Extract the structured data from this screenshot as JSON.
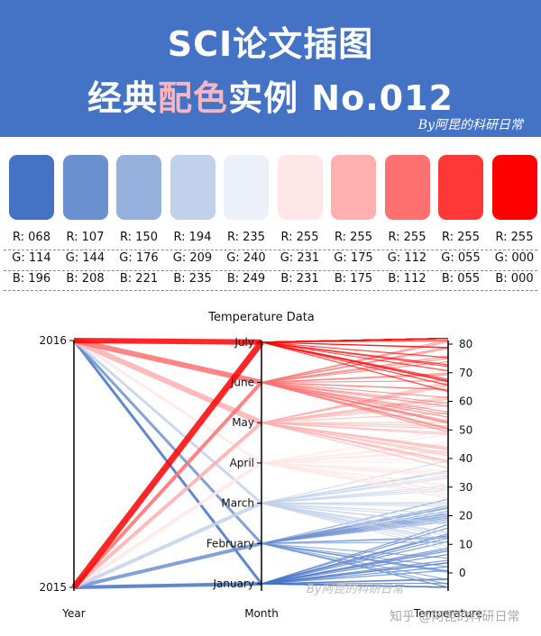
{
  "header": {
    "title_line1": "SCI论文插图",
    "title_line2_part1": "经典",
    "title_line2_highlight": "配色",
    "title_line2_part2": "实例 No.012",
    "byline": "By阿昆的科研日常"
  },
  "palette": [
    {
      "hex": "#4472c4",
      "r": "R: 068",
      "g": "G: 114",
      "b": "B: 196"
    },
    {
      "hex": "#6b90d0",
      "r": "R: 107",
      "g": "G: 144",
      "b": "B: 208"
    },
    {
      "hex": "#96b0dd",
      "r": "R: 150",
      "g": "G: 176",
      "b": "B: 221"
    },
    {
      "hex": "#c2d1eb",
      "r": "R: 194",
      "g": "G: 209",
      "b": "B: 235"
    },
    {
      "hex": "#ebf0f9",
      "r": "R: 235",
      "g": "G: 240",
      "b": "B: 249"
    },
    {
      "hex": "#ffe7e7",
      "r": "R: 255",
      "g": "G: 231",
      "b": "B: 231"
    },
    {
      "hex": "#ffafaf",
      "r": "R: 255",
      "g": "G: 175",
      "b": "B: 175"
    },
    {
      "hex": "#ff7070",
      "r": "R: 255",
      "g": "G: 112",
      "b": "B: 112"
    },
    {
      "hex": "#ff3737",
      "r": "R: 255",
      "g": "G: 055",
      "b": "B: 055"
    },
    {
      "hex": "#ff0000",
      "r": "R: 255",
      "g": "G: 000",
      "b": "B: 000"
    }
  ],
  "chart_data": {
    "type": "parallel-coordinates",
    "title": "Temperature Data",
    "axes": [
      {
        "name": "Year",
        "ticks": [
          "2015",
          "2016"
        ]
      },
      {
        "name": "Month",
        "ticks": [
          "January",
          "February",
          "March",
          "April",
          "May",
          "June",
          "July"
        ]
      },
      {
        "name": "Temperature",
        "ticks": [
          "0",
          "10",
          "20",
          "30",
          "40",
          "50",
          "60",
          "70",
          "80"
        ],
        "range": [
          -5,
          80
        ]
      }
    ],
    "month_mean_temperature": [
      {
        "month": "January",
        "temperature": 0
      },
      {
        "month": "February",
        "temperature": 10
      },
      {
        "month": "March",
        "temperature": 25
      },
      {
        "month": "April",
        "temperature": 38
      },
      {
        "month": "May",
        "temperature": 52
      },
      {
        "month": "June",
        "temperature": 65
      },
      {
        "month": "July",
        "temperature": 80
      }
    ],
    "color_by": "Month",
    "watermark": "By阿昆的科研日常"
  },
  "watermark": "知乎 @阿昆的科研日常"
}
